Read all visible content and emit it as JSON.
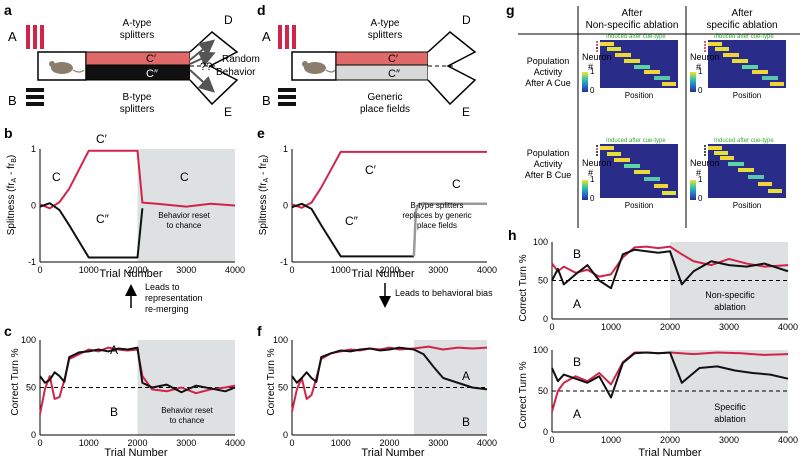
{
  "panel_labels": {
    "a": "a",
    "b": "b",
    "c": "c",
    "d": "d",
    "e": "e",
    "f": "f",
    "g": "g",
    "h": "h"
  },
  "panel_a": {
    "a_label": "A",
    "b_label": "B",
    "a_splitters": "A-type",
    "a_splitters2": "splitters",
    "b_splitters": "B-type",
    "b_splitters2": "splitters",
    "c_prime": "C′",
    "c_dprime": "C″",
    "d_label": "D",
    "e_label": "E",
    "question": "??",
    "random": "Random",
    "behavior": "Behavior",
    "colors": {
      "a_cue": "#d2234a",
      "c_prime": "#e06a6a",
      "c_dprime": "#111111"
    }
  },
  "panel_d": {
    "a_label": "A",
    "b_label": "B",
    "a_splitters": "A-type",
    "a_splitters2": "splitters",
    "generic": "Generic",
    "generic2": "place fields",
    "c_prime": "C′",
    "c_dprime": "C″",
    "d_label": "D",
    "e_label": "E",
    "colors": {
      "c_prime": "#e06a6a",
      "c_dprime": "#d8d8d8"
    }
  },
  "arrows": {
    "left_l1": "Leads to",
    "left_l2": "representation",
    "left_l3": "re-merging",
    "right": "Leads to behavioral bias"
  },
  "chart_data": [
    {
      "id": "b",
      "type": "line",
      "xlabel": "Trial Number",
      "ylabel": "Splitness (fr",
      "ylabel_sub_a": "A",
      "ylabel_mid": " - fr",
      "ylabel_sub_b": "B",
      "ylabel_end": ")",
      "xlim": [
        0,
        4000
      ],
      "ylim": [
        -1,
        1
      ],
      "xticks": [
        "0",
        "1000",
        "2000",
        "3000",
        "4000"
      ],
      "yticks": [
        "1",
        "0",
        "-1"
      ],
      "shade_from": 2000,
      "annotations": {
        "c_left": "C",
        "c_prime": "C′",
        "c_dprime": "C″",
        "c_right": "C",
        "reset1": "Behavior reset",
        "reset2": "to chance"
      },
      "series": [
        {
          "name": "C′",
          "color": "#d2234a",
          "x": [
            0,
            200,
            400,
            600,
            1000,
            2000,
            2100,
            2400,
            3000,
            3500,
            4000
          ],
          "y": [
            0.02,
            -0.05,
            0.06,
            0.3,
            0.97,
            0.97,
            0.05,
            0.03,
            -0.02,
            0.03,
            0.0
          ]
        },
        {
          "name": "C″",
          "color": "#111111",
          "x": [
            0,
            200,
            400,
            600,
            1000,
            2000,
            2100
          ],
          "y": [
            -0.02,
            0.04,
            -0.08,
            -0.35,
            -0.92,
            -0.92,
            -0.05
          ]
        }
      ]
    },
    {
      "id": "c",
      "type": "line",
      "xlabel": "Trial Number",
      "ylabel": "Correct Turn %",
      "xlim": [
        0,
        4000
      ],
      "ylim": [
        0,
        100
      ],
      "xticks": [
        "0",
        "1000",
        "2000",
        "3000",
        "4000"
      ],
      "yticks": [
        "100",
        "50",
        "0"
      ],
      "shade_from": 2000,
      "chance": 50,
      "annotations": {
        "a": "A",
        "b": "B",
        "reset1": "Behavior reset",
        "reset2": "to chance"
      },
      "series": [
        {
          "name": "A",
          "color": "#d2234a",
          "x": [
            0,
            100,
            200,
            300,
            400,
            500,
            600,
            800,
            1000,
            1200,
            1400,
            1600,
            1800,
            2000,
            2100,
            2300,
            2600,
            2900,
            3200,
            3500,
            3800,
            4000
          ],
          "y": [
            22,
            48,
            62,
            38,
            40,
            58,
            80,
            85,
            90,
            88,
            92,
            90,
            89,
            90,
            62,
            48,
            46,
            50,
            44,
            48,
            50,
            52
          ]
        },
        {
          "name": "B",
          "color": "#111111",
          "x": [
            0,
            100,
            200,
            300,
            400,
            500,
            600,
            800,
            1000,
            1200,
            1400,
            1600,
            1800,
            2000,
            2100,
            2300,
            2600,
            2900,
            3200,
            3500,
            3800,
            4000
          ],
          "y": [
            62,
            55,
            58,
            66,
            62,
            56,
            82,
            87,
            88,
            90,
            88,
            91,
            90,
            92,
            55,
            50,
            53,
            45,
            52,
            49,
            46,
            50
          ]
        }
      ]
    },
    {
      "id": "e",
      "type": "line",
      "xlabel": "Trial Number",
      "ylabel": "Splitness (fr",
      "ylabel_sub_a": "A",
      "ylabel_mid": " - fr",
      "ylabel_sub_b": "B",
      "ylabel_end": ")",
      "xlim": [
        0,
        4000
      ],
      "ylim": [
        -1,
        1
      ],
      "xticks": [
        "0",
        "1000",
        "2000",
        "3000",
        "4000"
      ],
      "yticks": [
        "1",
        "0",
        "-1"
      ],
      "annotations": {
        "c_prime": "C′",
        "c_dprime": "C″",
        "c_right": "C",
        "note1": "B-type splitters",
        "note2": "replaces by generic",
        "note3": "place fields"
      },
      "series": [
        {
          "name": "C′",
          "color": "#d2234a",
          "x": [
            0,
            200,
            400,
            600,
            1000,
            4000
          ],
          "y": [
            0.02,
            -0.04,
            0.05,
            0.32,
            0.95,
            0.95
          ]
        },
        {
          "name": "C″",
          "color": "#111111",
          "x": [
            0,
            200,
            400,
            600,
            1000,
            2500
          ],
          "y": [
            -0.03,
            0.03,
            -0.06,
            -0.35,
            -0.9,
            -0.9
          ]
        },
        {
          "name": "C",
          "color": "#9a9a9a",
          "x": [
            2500,
            2540,
            2600,
            2700,
            2800,
            3000,
            4000
          ],
          "y": [
            -0.9,
            -0.1,
            0.02,
            0.04,
            0.03,
            0.03,
            0.03
          ]
        }
      ]
    },
    {
      "id": "f",
      "type": "line",
      "xlabel": "Trial Number",
      "ylabel": "Correct Turn %",
      "xlim": [
        0,
        4000
      ],
      "ylim": [
        0,
        100
      ],
      "xticks": [
        "0",
        "1000",
        "2000",
        "3000",
        "4000"
      ],
      "yticks": [
        "100",
        "50",
        "0"
      ],
      "shade_from": 2500,
      "chance": 50,
      "annotations": {
        "a": "A",
        "b": "B"
      },
      "series": [
        {
          "name": "A",
          "color": "#d2234a",
          "x": [
            0,
            100,
            200,
            300,
            400,
            500,
            600,
            800,
            1000,
            1200,
            1400,
            1600,
            1800,
            2000,
            2200,
            2500,
            2800,
            3100,
            3400,
            3700,
            4000
          ],
          "y": [
            25,
            48,
            60,
            38,
            42,
            60,
            80,
            86,
            88,
            90,
            89,
            91,
            90,
            92,
            90,
            91,
            93,
            90,
            92,
            91,
            92
          ]
        },
        {
          "name": "B",
          "color": "#111111",
          "x": [
            0,
            100,
            200,
            300,
            400,
            500,
            600,
            800,
            1000,
            1200,
            1400,
            1600,
            1800,
            2000,
            2200,
            2500,
            2700,
            2900,
            3100,
            3400,
            3700,
            4000
          ],
          "y": [
            62,
            55,
            60,
            66,
            60,
            56,
            82,
            86,
            89,
            88,
            90,
            91,
            89,
            90,
            92,
            90,
            85,
            72,
            60,
            55,
            50,
            48
          ]
        }
      ]
    },
    {
      "id": "h1",
      "type": "line",
      "xlabel": "",
      "ylabel": "Correct Turn %",
      "xlim": [
        0,
        4000
      ],
      "ylim": [
        0,
        100
      ],
      "xticks": [
        "0",
        "1000",
        "2000",
        "3000",
        "4000"
      ],
      "yticks": [
        "100",
        "50",
        "0"
      ],
      "shade_from": 2000,
      "chance": 50,
      "annotations": {
        "a": "A",
        "b": "B",
        "box1": "Non-specific",
        "box2": "ablation"
      },
      "series": [
        {
          "name": "B",
          "color": "#d2234a",
          "x": [
            0,
            100,
            200,
            400,
            600,
            800,
            1000,
            1200,
            1400,
            1600,
            1800,
            2000,
            2200,
            2400,
            2700,
            3000,
            3300,
            3600,
            4000
          ],
          "y": [
            72,
            62,
            68,
            60,
            64,
            55,
            58,
            80,
            93,
            94,
            92,
            94,
            84,
            75,
            70,
            78,
            72,
            68,
            70
          ]
        },
        {
          "name": "A",
          "color": "#111111",
          "x": [
            0,
            100,
            200,
            400,
            600,
            800,
            1000,
            1200,
            1400,
            1600,
            1800,
            2000,
            2200,
            2400,
            2700,
            3000,
            3300,
            3600,
            4000
          ],
          "y": [
            50,
            65,
            45,
            58,
            70,
            50,
            40,
            84,
            90,
            88,
            86,
            88,
            45,
            62,
            75,
            70,
            68,
            72,
            62
          ]
        }
      ]
    },
    {
      "id": "h2",
      "type": "line",
      "xlabel": "Trial Number",
      "ylabel": "Correct Turn %",
      "xlim": [
        0,
        4000
      ],
      "ylim": [
        0,
        100
      ],
      "xticks": [
        "0",
        "1000",
        "2000",
        "3000",
        "4000"
      ],
      "yticks": [
        "100",
        "50",
        "0"
      ],
      "shade_from": 2000,
      "chance": 50,
      "annotations": {
        "a": "A",
        "b": "B",
        "box1": "Specific",
        "box2": "ablation"
      },
      "series": [
        {
          "name": "B",
          "color": "#d2234a",
          "x": [
            0,
            100,
            200,
            400,
            600,
            800,
            1000,
            1200,
            1400,
            1600,
            1800,
            2000,
            2400,
            2800,
            3200,
            3600,
            4000
          ],
          "y": [
            25,
            50,
            60,
            68,
            62,
            72,
            58,
            85,
            97,
            97,
            96,
            97,
            95,
            97,
            96,
            94,
            95
          ]
        },
        {
          "name": "A",
          "color": "#111111",
          "x": [
            0,
            100,
            200,
            400,
            600,
            800,
            1000,
            1200,
            1400,
            1600,
            1800,
            2000,
            2200,
            2500,
            2800,
            3100,
            3400,
            3700,
            4000
          ],
          "y": [
            78,
            62,
            70,
            65,
            60,
            68,
            42,
            84,
            96,
            97,
            96,
            97,
            60,
            78,
            80,
            75,
            72,
            70,
            65
          ]
        }
      ]
    }
  ],
  "panel_g": {
    "col1": "After",
    "col1b": "Non-specific ablation",
    "col2": "After",
    "col2b": "specific ablation",
    "row1": "Population",
    "row1b": "Activity",
    "row1c": "After A Cue",
    "row2": "Population",
    "row2b": "Activity",
    "row2c": "After B Cue",
    "induced": "Induced after cue-type",
    "neuron": "Neuron",
    "hash": "#",
    "position": "Position",
    "cbar_top": "1",
    "cbar_bottom": "0"
  }
}
